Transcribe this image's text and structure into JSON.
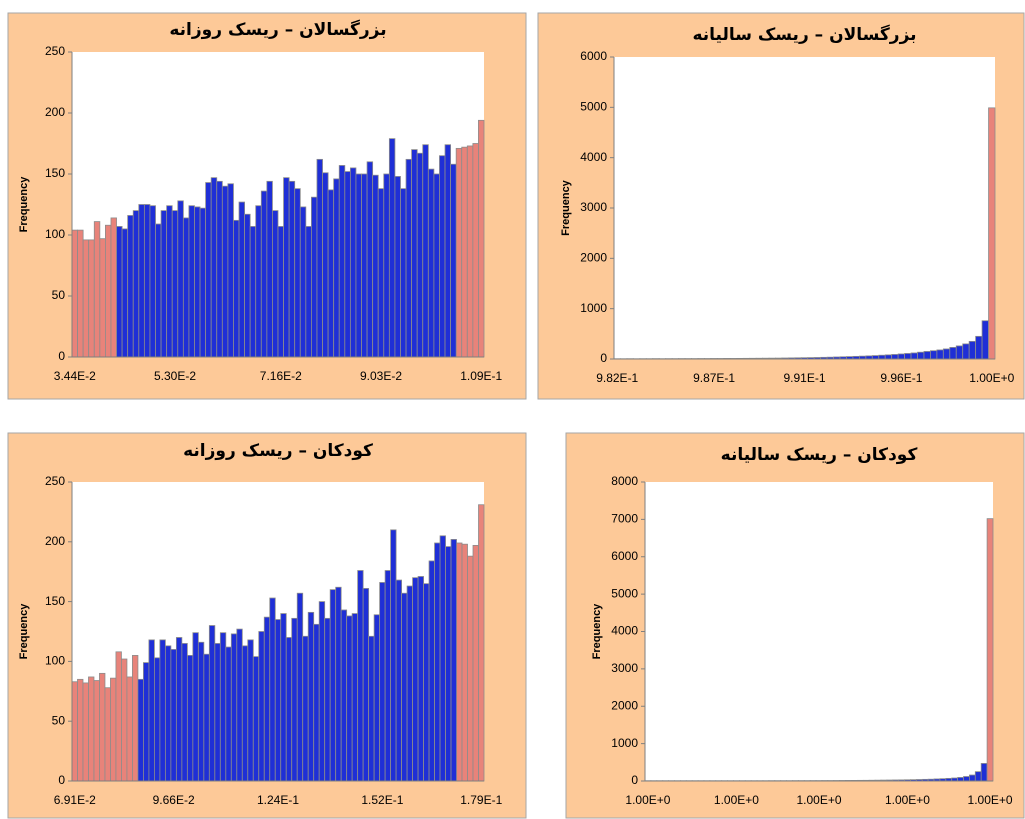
{
  "chart_data": [
    {
      "type": "bar",
      "title": "بزرگسالان – ریسک روزانه",
      "y_label": "Frequency",
      "categories": [
        "3.44E-2",
        null,
        null,
        null,
        null,
        null,
        null,
        null,
        null,
        null,
        null,
        null,
        null,
        null,
        null,
        null,
        null,
        null,
        "5.30E-2",
        null,
        null,
        null,
        null,
        null,
        null,
        null,
        null,
        null,
        null,
        null,
        null,
        null,
        null,
        null,
        null,
        null,
        null,
        "7.16E-2",
        null,
        null,
        null,
        null,
        null,
        null,
        null,
        null,
        null,
        null,
        null,
        null,
        null,
        null,
        null,
        null,
        null,
        "9.03E-2",
        null,
        null,
        null,
        null,
        null,
        null,
        null,
        null,
        null,
        null,
        null,
        null,
        null,
        null,
        null,
        null,
        null,
        "1.09E-1"
      ],
      "series": [
        {
          "color": "#e8837a",
          "values": [
            104,
            104,
            96,
            96,
            111,
            97,
            108,
            114,
            null,
            null,
            null,
            null,
            null,
            null,
            null,
            null,
            null,
            null,
            null,
            null,
            null,
            null,
            null,
            null,
            null,
            null,
            null,
            null,
            null,
            null,
            null,
            null,
            null,
            null,
            null,
            null,
            null,
            null,
            null,
            null,
            null,
            null,
            null,
            null,
            null,
            null,
            null,
            null,
            null,
            null,
            null,
            null,
            null,
            null,
            null,
            null,
            null,
            null,
            null,
            null,
            null,
            null,
            null,
            null,
            null,
            null,
            null,
            null,
            null,
            171,
            172,
            173,
            175,
            194
          ]
        },
        {
          "color": "#1f2fd6",
          "values": [
            null,
            null,
            null,
            null,
            null,
            null,
            null,
            null,
            107,
            105,
            116,
            120,
            125,
            125,
            124,
            109,
            120,
            124,
            120,
            128,
            114,
            124,
            123,
            122,
            143,
            147,
            144,
            140,
            142,
            112,
            127,
            117,
            107,
            124,
            136,
            144,
            120,
            107,
            147,
            144,
            138,
            123,
            107,
            131,
            162,
            151,
            137,
            146,
            157,
            152,
            155,
            150,
            150,
            160,
            149,
            138,
            150,
            179,
            148,
            138,
            162,
            170,
            167,
            174,
            154,
            150,
            165,
            174,
            158,
            null,
            null,
            null,
            null,
            null
          ]
        }
      ],
      "ylim": [
        0,
        250
      ],
      "yticks": [
        0,
        50,
        100,
        150,
        200,
        250
      ]
    },
    {
      "type": "bar",
      "title": "بزرگسالان – ریسک سالیانه",
      "y_label": "Frequency",
      "categories": [
        "9.82E-1",
        null,
        null,
        null,
        null,
        null,
        null,
        null,
        null,
        null,
        null,
        null,
        null,
        null,
        null,
        "9.87E-1",
        null,
        null,
        null,
        null,
        null,
        null,
        null,
        null,
        null,
        null,
        null,
        null,
        null,
        "9.91E-1",
        null,
        null,
        null,
        null,
        null,
        null,
        null,
        null,
        null,
        null,
        null,
        null,
        null,
        null,
        "9.96E-1",
        null,
        null,
        null,
        null,
        null,
        null,
        null,
        null,
        null,
        null,
        null,
        null,
        null,
        "1.00E+0"
      ],
      "series": [
        {
          "color": "#1f2fd6",
          "values": [
            5,
            5,
            6,
            5,
            6,
            6,
            7,
            6,
            7,
            7,
            8,
            8,
            8,
            9,
            9,
            10,
            10,
            11,
            11,
            12,
            13,
            14,
            15,
            16,
            17,
            18,
            20,
            22,
            24,
            26,
            28,
            30,
            33,
            36,
            40,
            44,
            48,
            52,
            57,
            62,
            68,
            75,
            82,
            90,
            100,
            110,
            120,
            135,
            150,
            165,
            180,
            200,
            230,
            260,
            300,
            350,
            450,
            760,
            null
          ]
        },
        {
          "color": "#e8837a",
          "values": [
            null,
            null,
            null,
            null,
            null,
            null,
            null,
            null,
            null,
            null,
            null,
            null,
            null,
            null,
            null,
            null,
            null,
            null,
            null,
            null,
            null,
            null,
            null,
            null,
            null,
            null,
            null,
            null,
            null,
            null,
            null,
            null,
            null,
            null,
            null,
            null,
            null,
            null,
            null,
            null,
            null,
            null,
            null,
            null,
            null,
            null,
            null,
            null,
            null,
            null,
            null,
            null,
            null,
            null,
            null,
            null,
            null,
            null,
            4990
          ]
        }
      ],
      "ylim": [
        0,
        6000
      ],
      "yticks": [
        0,
        1000,
        2000,
        3000,
        4000,
        5000,
        6000
      ]
    },
    {
      "type": "bar",
      "title": "کودکان – ریسک روزانه",
      "y_label": "Frequency",
      "categories": [
        "6.91E-2",
        null,
        null,
        null,
        null,
        null,
        null,
        null,
        null,
        null,
        null,
        null,
        null,
        null,
        null,
        null,
        null,
        null,
        "9.66E-2",
        null,
        null,
        null,
        null,
        null,
        null,
        null,
        null,
        null,
        null,
        null,
        null,
        null,
        null,
        null,
        null,
        null,
        null,
        "1.24E-1",
        null,
        null,
        null,
        null,
        null,
        null,
        null,
        null,
        null,
        null,
        null,
        null,
        null,
        null,
        null,
        null,
        null,
        null,
        "1.52E-1",
        null,
        null,
        null,
        null,
        null,
        null,
        null,
        null,
        null,
        null,
        null,
        null,
        null,
        null,
        null,
        null,
        null,
        "1.79E-1"
      ],
      "series": [
        {
          "color": "#e8837a",
          "values": [
            83,
            85,
            82,
            87,
            84,
            90,
            78,
            86,
            108,
            102,
            87,
            105,
            null,
            null,
            null,
            null,
            null,
            null,
            null,
            null,
            null,
            null,
            null,
            null,
            null,
            null,
            null,
            null,
            null,
            null,
            null,
            null,
            null,
            null,
            null,
            null,
            null,
            null,
            null,
            null,
            null,
            null,
            null,
            null,
            null,
            null,
            null,
            null,
            null,
            null,
            null,
            null,
            null,
            null,
            null,
            null,
            null,
            null,
            null,
            null,
            null,
            null,
            null,
            null,
            null,
            null,
            null,
            null,
            null,
            null,
            199,
            198,
            188,
            197,
            231
          ]
        },
        {
          "color": "#1f2fd6",
          "values": [
            null,
            null,
            null,
            null,
            null,
            null,
            null,
            null,
            null,
            null,
            null,
            null,
            85,
            99,
            118,
            103,
            118,
            113,
            110,
            120,
            115,
            105,
            124,
            116,
            106,
            130,
            115,
            124,
            112,
            123,
            127,
            113,
            118,
            104,
            125,
            137,
            153,
            135,
            140,
            120,
            136,
            157,
            121,
            141,
            131,
            150,
            136,
            160,
            162,
            143,
            138,
            140,
            176,
            161,
            121,
            139,
            166,
            176,
            210,
            168,
            157,
            163,
            170,
            171,
            165,
            184,
            199,
            205,
            196,
            202,
            null,
            null,
            null,
            null,
            null
          ]
        }
      ],
      "ylim": [
        0,
        250
      ],
      "yticks": [
        0,
        50,
        100,
        150,
        200,
        250
      ]
    },
    {
      "type": "bar",
      "title": "کودکان – ریسک سالیانه",
      "y_label": "Frequency",
      "categories": [
        "1.00E+0",
        null,
        null,
        null,
        null,
        null,
        null,
        null,
        null,
        null,
        null,
        null,
        null,
        null,
        null,
        "1.00E+0",
        null,
        null,
        null,
        null,
        null,
        null,
        null,
        null,
        null,
        null,
        null,
        null,
        null,
        "1.00E+0",
        null,
        null,
        null,
        null,
        null,
        null,
        null,
        null,
        null,
        null,
        null,
        null,
        null,
        null,
        "1.00E+0",
        null,
        null,
        null,
        null,
        null,
        null,
        null,
        null,
        null,
        null,
        null,
        null,
        null,
        "1.00E+0"
      ],
      "series": [
        {
          "color": "#1f2fd6",
          "values": [
            8,
            8,
            8,
            8,
            8,
            8,
            8,
            8,
            8,
            8,
            8,
            8,
            8,
            8,
            8,
            8,
            8,
            8,
            8,
            8,
            8,
            9,
            9,
            9,
            9,
            10,
            10,
            10,
            11,
            11,
            12,
            12,
            13,
            14,
            15,
            16,
            17,
            18,
            20,
            22,
            24,
            26,
            28,
            30,
            33,
            36,
            40,
            44,
            48,
            55,
            62,
            70,
            80,
            95,
            120,
            160,
            250,
            470,
            null
          ]
        },
        {
          "color": "#e8837a",
          "values": [
            null,
            null,
            null,
            null,
            null,
            null,
            null,
            null,
            null,
            null,
            null,
            null,
            null,
            null,
            null,
            null,
            null,
            null,
            null,
            null,
            null,
            null,
            null,
            null,
            null,
            null,
            null,
            null,
            null,
            null,
            null,
            null,
            null,
            null,
            null,
            null,
            null,
            null,
            null,
            null,
            null,
            null,
            null,
            null,
            null,
            null,
            null,
            null,
            null,
            null,
            null,
            null,
            null,
            null,
            null,
            null,
            null,
            null,
            7020
          ]
        }
      ],
      "ylim": [
        0,
        8000
      ],
      "yticks": [
        0,
        1000,
        2000,
        3000,
        4000,
        5000,
        6000,
        7000,
        8000
      ]
    }
  ]
}
